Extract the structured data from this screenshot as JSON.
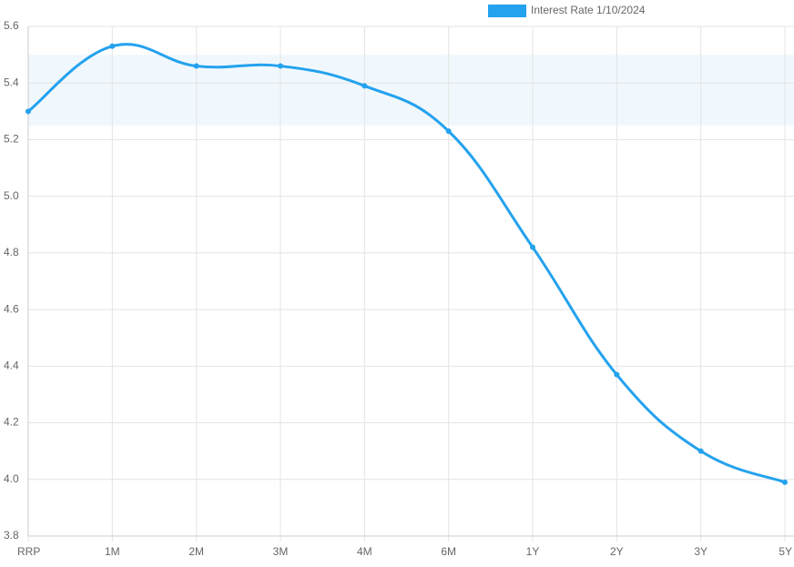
{
  "chart_data": {
    "type": "line",
    "categories": [
      "RRP",
      "1M",
      "2M",
      "3M",
      "4M",
      "6M",
      "1Y",
      "2Y",
      "3Y",
      "5Y"
    ],
    "series": [
      {
        "name": "Interest Rate 1/10/2024",
        "color": "#24a2ee",
        "values": [
          5.3,
          5.53,
          5.46,
          5.46,
          5.39,
          5.23,
          4.82,
          4.37,
          4.1,
          3.99
        ]
      }
    ],
    "band": {
      "range": [
        5.25,
        5.5
      ],
      "color": "#f1f8fd"
    },
    "ylim": [
      3.8,
      5.6
    ],
    "yticks": [
      3.8,
      {
        "value": 4,
        "label": "4.0"
      },
      4.2,
      4.4,
      4.6,
      4.8,
      {
        "value": 5,
        "label": "5.0"
      },
      5.2,
      5.4,
      5.6
    ],
    "grid": true,
    "legend": "top"
  }
}
